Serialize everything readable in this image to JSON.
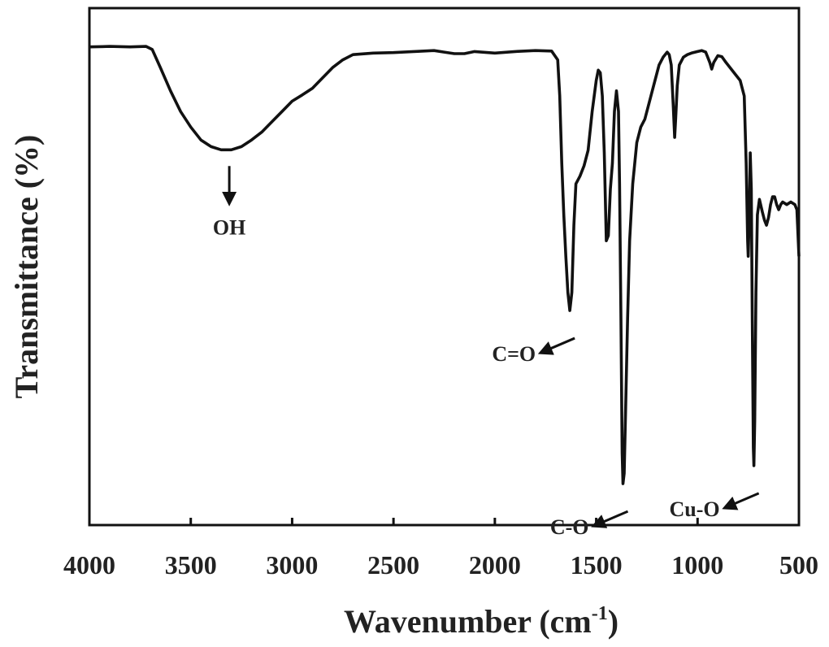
{
  "chart_data": {
    "type": "line",
    "xlabel": "Wavenumber (cm",
    "xlabel_sup": "-1",
    "xlabel_close": ")",
    "ylabel": "Transmittance (%)",
    "xlim": [
      4000,
      500
    ],
    "x_reversed": true,
    "ylim": [
      0,
      100
    ],
    "y_ticks_shown": false,
    "grid": false,
    "xticks": [
      4000,
      3500,
      3000,
      2500,
      2000,
      1500,
      1000,
      500
    ],
    "xtick_labels": [
      "4000",
      "3500",
      "3000",
      "2500",
      "2000",
      "1500",
      "1000",
      "500"
    ],
    "series": [
      {
        "color": "#111111",
        "points": [
          [
            4000,
            92.5
          ],
          [
            3900,
            92.6
          ],
          [
            3800,
            92.5
          ],
          [
            3720,
            92.6
          ],
          [
            3690,
            92.0
          ],
          [
            3650,
            88.5
          ],
          [
            3600,
            84.0
          ],
          [
            3550,
            80.0
          ],
          [
            3500,
            77.0
          ],
          [
            3450,
            74.5
          ],
          [
            3400,
            73.2
          ],
          [
            3350,
            72.6
          ],
          [
            3300,
            72.6
          ],
          [
            3250,
            73.2
          ],
          [
            3200,
            74.5
          ],
          [
            3150,
            76.0
          ],
          [
            3100,
            78.0
          ],
          [
            3050,
            80.0
          ],
          [
            3000,
            82.0
          ],
          [
            2950,
            83.2
          ],
          [
            2900,
            84.5
          ],
          [
            2850,
            86.5
          ],
          [
            2800,
            88.5
          ],
          [
            2750,
            90.0
          ],
          [
            2700,
            91.0
          ],
          [
            2600,
            91.3
          ],
          [
            2500,
            91.4
          ],
          [
            2400,
            91.6
          ],
          [
            2300,
            91.8
          ],
          [
            2250,
            91.5
          ],
          [
            2200,
            91.2
          ],
          [
            2150,
            91.2
          ],
          [
            2100,
            91.6
          ],
          [
            2000,
            91.3
          ],
          [
            1900,
            91.6
          ],
          [
            1800,
            91.8
          ],
          [
            1720,
            91.7
          ],
          [
            1690,
            90.0
          ],
          [
            1680,
            83.0
          ],
          [
            1670,
            70.0
          ],
          [
            1660,
            60.0
          ],
          [
            1650,
            52.0
          ],
          [
            1640,
            45.0
          ],
          [
            1630,
            41.5
          ],
          [
            1620,
            45.0
          ],
          [
            1610,
            58.0
          ],
          [
            1600,
            66.0
          ],
          [
            1580,
            67.5
          ],
          [
            1560,
            69.5
          ],
          [
            1540,
            72.5
          ],
          [
            1520,
            80.0
          ],
          [
            1500,
            86.0
          ],
          [
            1490,
            88.0
          ],
          [
            1480,
            87.5
          ],
          [
            1470,
            83.0
          ],
          [
            1460,
            72.0
          ],
          [
            1450,
            55.0
          ],
          [
            1440,
            56.0
          ],
          [
            1430,
            65.0
          ],
          [
            1420,
            70.0
          ],
          [
            1410,
            80.0
          ],
          [
            1400,
            84.0
          ],
          [
            1390,
            80.0
          ],
          [
            1385,
            66.0
          ],
          [
            1378,
            40.0
          ],
          [
            1372,
            14.0
          ],
          [
            1368,
            8.0
          ],
          [
            1362,
            10.0
          ],
          [
            1355,
            22.0
          ],
          [
            1345,
            40.0
          ],
          [
            1335,
            55.0
          ],
          [
            1320,
            66.0
          ],
          [
            1300,
            74.0
          ],
          [
            1280,
            77.0
          ],
          [
            1260,
            78.5
          ],
          [
            1250,
            80.0
          ],
          [
            1230,
            83.0
          ],
          [
            1210,
            86.0
          ],
          [
            1190,
            89.0
          ],
          [
            1170,
            90.5
          ],
          [
            1150,
            91.5
          ],
          [
            1140,
            91.0
          ],
          [
            1130,
            89.0
          ],
          [
            1120,
            81.0
          ],
          [
            1113,
            75.0
          ],
          [
            1108,
            78.5
          ],
          [
            1100,
            85.0
          ],
          [
            1090,
            89.0
          ],
          [
            1070,
            90.5
          ],
          [
            1050,
            91.0
          ],
          [
            1030,
            91.3
          ],
          [
            1000,
            91.6
          ],
          [
            980,
            91.8
          ],
          [
            960,
            91.5
          ],
          [
            940,
            89.5
          ],
          [
            930,
            88.2
          ],
          [
            920,
            89.5
          ],
          [
            900,
            90.8
          ],
          [
            880,
            90.6
          ],
          [
            860,
            89.5
          ],
          [
            840,
            88.5
          ],
          [
            820,
            87.5
          ],
          [
            790,
            86.0
          ],
          [
            770,
            83.0
          ],
          [
            760,
            70.0
          ],
          [
            753,
            55.0
          ],
          [
            750,
            52.0
          ],
          [
            745,
            60.0
          ],
          [
            740,
            72.0
          ],
          [
            735,
            65.0
          ],
          [
            730,
            40.0
          ],
          [
            725,
            15.0
          ],
          [
            722,
            11.5
          ],
          [
            718,
            20.0
          ],
          [
            712,
            45.0
          ],
          [
            705,
            60.0
          ],
          [
            695,
            63.0
          ],
          [
            680,
            60.5
          ],
          [
            670,
            59.0
          ],
          [
            660,
            58.0
          ],
          [
            650,
            59.5
          ],
          [
            640,
            62.0
          ],
          [
            630,
            63.5
          ],
          [
            620,
            63.5
          ],
          [
            610,
            62.0
          ],
          [
            600,
            61.0
          ],
          [
            590,
            62.0
          ],
          [
            580,
            62.5
          ],
          [
            560,
            62.0
          ],
          [
            540,
            62.5
          ],
          [
            520,
            62.0
          ],
          [
            510,
            61.0
          ],
          [
            500,
            52.0
          ]
        ]
      }
    ],
    "annotations": [
      {
        "label": "OH",
        "x": 3310,
        "y": 72.6,
        "direction": "down"
      },
      {
        "label": "C=O",
        "x": 1630,
        "y": 41.5,
        "direction": "down-left"
      },
      {
        "label": "C-O",
        "x": 1368,
        "y": 8.0,
        "direction": "down-left"
      },
      {
        "label": "Cu-O",
        "x": 722,
        "y": 11.5,
        "direction": "down-left"
      }
    ]
  }
}
